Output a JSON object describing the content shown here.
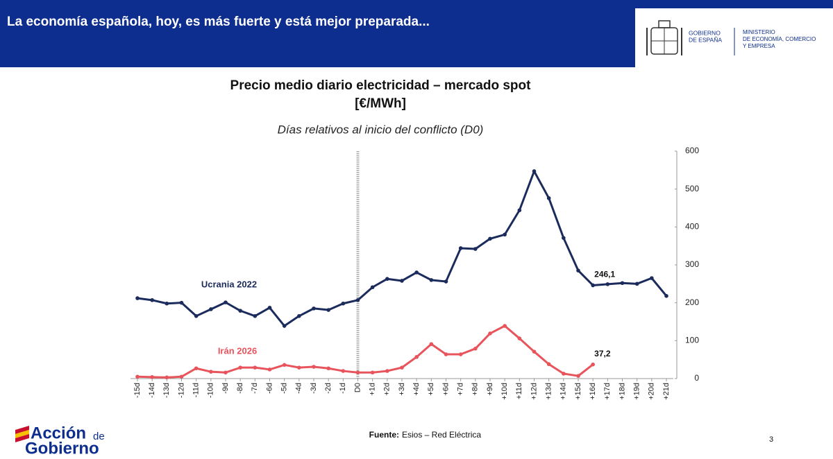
{
  "header": {
    "title": "La economía española, hoy, es más fuerte y está mejor preparada...",
    "gov_lines": [
      "GOBIERNO",
      "DE ESPAÑA"
    ],
    "ministry_lines": [
      "MINISTERIO",
      "DE ECONOMÍA, COMERCIO",
      "Y EMPRESA"
    ]
  },
  "chart_data": {
    "type": "line",
    "title": "Precio medio diario electricidad – mercado spot",
    "subtitle": "[€/MWh]",
    "x_label": "Días relativos al inicio del conflicto (D0)",
    "categories": [
      "-15d",
      "-14d",
      "-13d",
      "-12d",
      "-11d",
      "-10d",
      "-9d",
      "-8d",
      "-7d",
      "-6d",
      "-5d",
      "-4d",
      "-3d",
      "-2d",
      "-1d",
      "D0",
      "+1d",
      "+2d",
      "+3d",
      "+4d",
      "+5d",
      "+6d",
      "+7d",
      "+8d",
      "+9d",
      "+10d",
      "+11d",
      "+12d",
      "+13d",
      "+14d",
      "+15d",
      "+16d",
      "+17d",
      "+18d",
      "+19d",
      "+20d",
      "+21d"
    ],
    "vline": "D0",
    "series": [
      {
        "name": "Ucrania 2022",
        "color": "#1b2b5c",
        "values": [
          212,
          207,
          198,
          200,
          165,
          183,
          201,
          179,
          165,
          187,
          139,
          165,
          185,
          181,
          198,
          207,
          241,
          263,
          258,
          280,
          260,
          256,
          344,
          342,
          369,
          380,
          444,
          547,
          476,
          371,
          285,
          246.1,
          249,
          252,
          250,
          265,
          218
        ],
        "value_labels": [
          null,
          null,
          null,
          null,
          null,
          null,
          null,
          null,
          null,
          null,
          null,
          null,
          null,
          null,
          null,
          null,
          null,
          null,
          null,
          null,
          null,
          null,
          null,
          null,
          null,
          null,
          null,
          null,
          null,
          null,
          null,
          "246,1",
          null,
          null,
          null,
          null,
          null
        ]
      },
      {
        "name": "Irán 2026",
        "color": "#e8545c",
        "values": [
          5,
          4,
          3,
          5,
          27,
          18,
          16,
          29,
          29,
          24,
          36,
          29,
          31,
          27,
          20,
          16,
          16,
          20,
          29,
          57,
          91,
          64,
          64,
          79,
          119,
          139,
          106,
          71,
          38,
          13,
          7,
          37.2,
          null,
          null,
          null,
          null,
          null
        ],
        "value_labels": [
          null,
          null,
          null,
          null,
          null,
          null,
          null,
          null,
          null,
          null,
          null,
          null,
          null,
          null,
          null,
          null,
          null,
          null,
          null,
          null,
          null,
          null,
          null,
          null,
          null,
          null,
          null,
          null,
          null,
          null,
          null,
          "37,2",
          null,
          null,
          null,
          null,
          null
        ]
      }
    ],
    "ylim": [
      0,
      600
    ],
    "yticks": [
      0,
      100,
      200,
      300,
      400,
      500,
      600
    ],
    "y_axis_side": "right"
  },
  "footer": {
    "source_label": "Fuente:",
    "source_text": "Esios – Red Eléctrica",
    "page": "3",
    "logo_lines": [
      "Acción",
      "de",
      "Gobierno"
    ]
  }
}
